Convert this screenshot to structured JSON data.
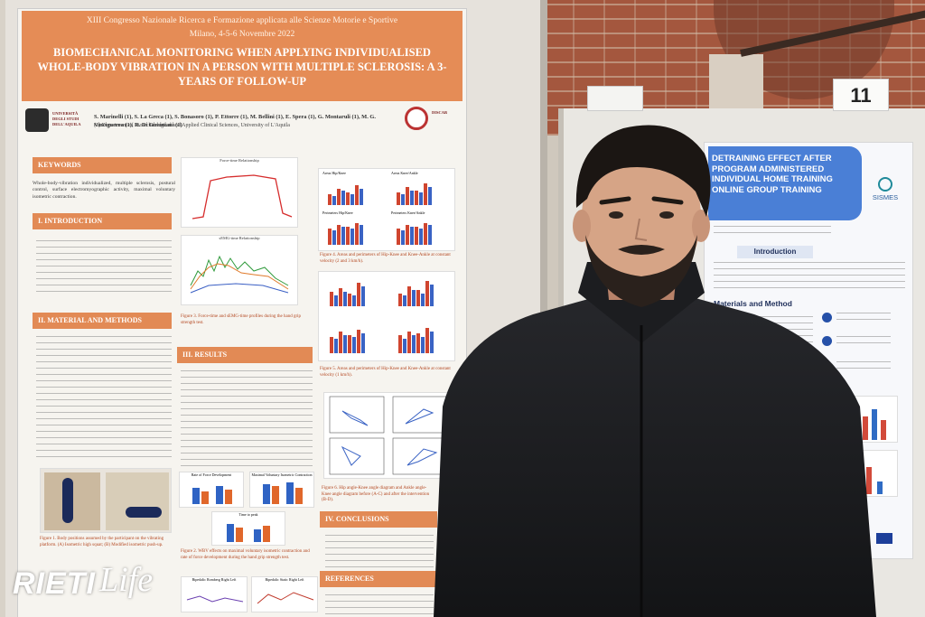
{
  "left_poster": {
    "conference": "XIII Congresso Nazionale Ricerca e Formazione applicata alle Scienze Motorie e Sportive",
    "city_date": "Milano, 4-5-6 Novembre 2022",
    "title": "BIOMECHANICAL MONITORING WHEN APPLYING INDIVIDUALISED WHOLE-BODY VIBRATION IN A PERSON WITH MULTIPLE SCLEROSIS: A 3-YEARS OF FOLLOW-UP",
    "authors": "S. Marinelli (1), S. La Greca (1), S. Bonasoro (1), P. Ettorre (1), M. Bellini (1), E. Spera (1), G. Montaruli (1), M. G. Vinciguerra (1), R. Di Giminiani (1)",
    "department": "(1) Department of Biotechnological and Applied Clinical Sciences, University of L'Aquila",
    "sections": {
      "keywords": "KEYWORDS",
      "keywords_text": "Whole-body-vibration individualized, multiple sclerosis, postural control, surface electromyographic activity, maximal voluntary isometric contraction.",
      "introduction": "I. INTRODUCTION",
      "material": "II. MATERIAL AND METHODS",
      "results": "III. RESULTS",
      "conclusions": "IV. CONCLUSIONS",
      "references": "REFERENCES"
    },
    "figure_captions": {
      "fig3": "Figure 3. Force-time and sEMG-time profiles during the hand grip strength test.",
      "fig4": "Figure 4. Areas and perimeters of Hip-Knee and Knee-Ankle at constant velocity (2 and 3 km/h).",
      "fig5": "Figure 5. Areas and perimeters of Hip-Knee and Knee-Ankle at constant velocity (1 km/h).",
      "fig6": "Figure 6. Hip angle-Knee angle diagram and Ankle angle-Knee angle diagram before (A-C) and after the intervention (B-D).",
      "fig1": "Figure 1. Body positions assumed by the participant on the vibrating platform. (A) Isometric high squat; (B) Modified isometric push-up.",
      "fig2": "Figure 2. WBV effects on maximal voluntary isometric contraction and rate of force development during the hand grip strength test."
    },
    "chart_titles": {
      "force_time": "Force-time Relationship",
      "semg_time": "sEMG-time Relationship",
      "areas_hip_knee": "Areas Hip/Knee",
      "areas_knee_ankle": "Areas Knee/Ankle",
      "perimeters_hip_knee": "Perimeters Hip/Knee",
      "perimeters_knee_ankle": "Perimeters Knee/Ankle",
      "rate_force": "Rate of Force Development",
      "max_voluntary": "Maximal Voluntary Isometric Contraction",
      "time_to_peak": "Time to peak",
      "bipedalic_right": "Bipedalic Romberg Right Left",
      "bipedalic_left": "Bipedalic Static Right Left"
    }
  },
  "right_poster": {
    "title": "DETRAINING EFFECT AFTER PROGRAM ADMINISTERED INDIVIDUAL HOME TRAINING ONLINE GROUP TRAINING",
    "logo_text": "SISMES",
    "introduction": "Introduction",
    "materials": "Materials and Method"
  },
  "booth_number": "11",
  "watermark": {
    "text": "RIETI",
    "script": "Life"
  },
  "colors": {
    "poster_orange": "#e58c56",
    "poster_blue": "#4a7fd6",
    "jacket": "#1e1f22",
    "skin": "#d9a88a"
  }
}
